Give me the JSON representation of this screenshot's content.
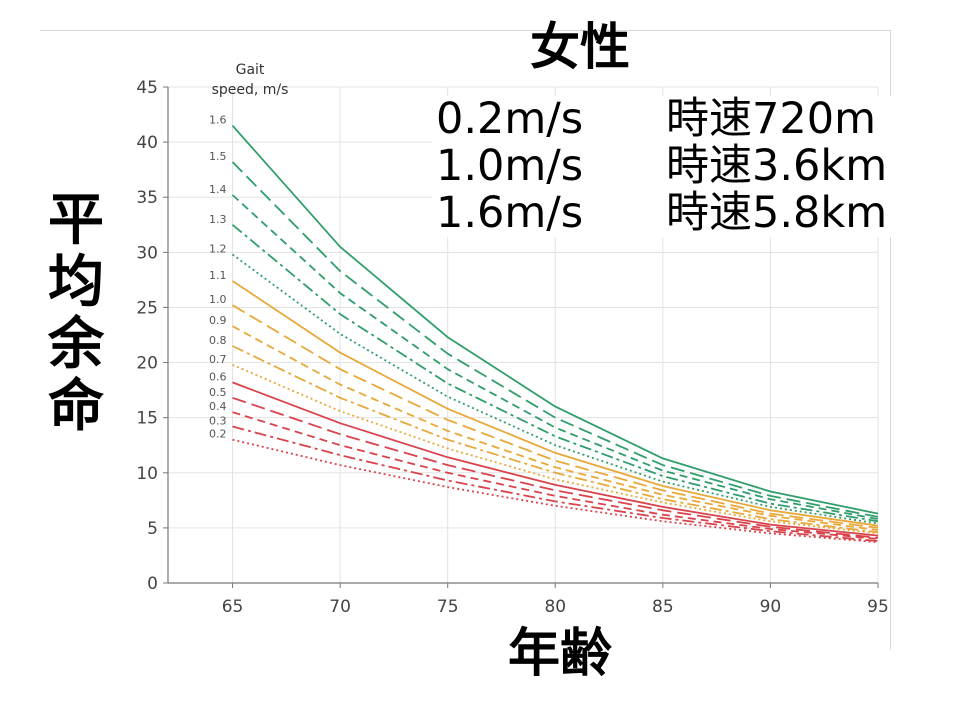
{
  "title": "女性",
  "y_axis_label": "平均余命",
  "x_axis_label": "年齢",
  "speed_info": [
    {
      "speed": "0.2m/s",
      "equiv": "時速720m"
    },
    {
      "speed": "1.0m/s",
      "equiv": "時速3.6km"
    },
    {
      "speed": "1.6m/s",
      "equiv": "時速5.8km"
    }
  ],
  "legend_header": [
    "Gait",
    "speed, m/s"
  ],
  "colors": {
    "green": "#2f9e6a",
    "orange": "#e8a83a",
    "red": "#d9434b"
  },
  "chart_data": {
    "type": "line",
    "xlim": [
      62,
      95
    ],
    "ylim": [
      0,
      45
    ],
    "x_ticks": [
      65,
      70,
      75,
      80,
      85,
      90,
      95
    ],
    "y_ticks": [
      0,
      5,
      10,
      15,
      20,
      25,
      30,
      35,
      40,
      45
    ],
    "grid": true,
    "x": [
      65,
      70,
      75,
      80,
      85,
      90,
      95
    ],
    "series": [
      {
        "name": "1.6",
        "color": "#2f9e6a",
        "dash": "solid",
        "values": [
          41.5,
          30.5,
          22.3,
          16.0,
          11.3,
          8.3,
          6.3
        ]
      },
      {
        "name": "1.5",
        "color": "#2f9e6a",
        "dash": "longdash",
        "values": [
          38.2,
          28.3,
          20.8,
          15.0,
          10.7,
          7.9,
          6.0
        ]
      },
      {
        "name": "1.4",
        "color": "#2f9e6a",
        "dash": "dash",
        "values": [
          35.2,
          26.3,
          19.4,
          14.1,
          10.2,
          7.6,
          5.8
        ]
      },
      {
        "name": "1.3",
        "color": "#2f9e6a",
        "dash": "dashdot",
        "values": [
          32.5,
          24.4,
          18.1,
          13.3,
          9.7,
          7.2,
          5.6
        ]
      },
      {
        "name": "1.2",
        "color": "#2f9e6a",
        "dash": "dot",
        "values": [
          29.8,
          22.6,
          16.9,
          12.5,
          9.2,
          6.9,
          5.4
        ]
      },
      {
        "name": "1.1",
        "color": "#e8a83a",
        "dash": "solid",
        "values": [
          27.4,
          20.9,
          15.8,
          11.8,
          8.8,
          6.6,
          5.2
        ]
      },
      {
        "name": "1.0",
        "color": "#e8a83a",
        "dash": "longdash",
        "values": [
          25.2,
          19.4,
          14.8,
          11.1,
          8.4,
          6.3,
          5.0
        ]
      },
      {
        "name": "0.9",
        "color": "#e8a83a",
        "dash": "dash",
        "values": [
          23.3,
          18.0,
          13.8,
          10.5,
          8.0,
          6.1,
          4.8
        ]
      },
      {
        "name": "0.8",
        "color": "#e8a83a",
        "dash": "dashdot",
        "values": [
          21.5,
          16.8,
          13.0,
          10.0,
          7.6,
          5.8,
          4.6
        ]
      },
      {
        "name": "0.7",
        "color": "#e8a83a",
        "dash": "dot",
        "values": [
          19.8,
          15.6,
          12.2,
          9.4,
          7.3,
          5.6,
          4.5
        ]
      },
      {
        "name": "0.6",
        "color": "#d9434b",
        "dash": "solid",
        "values": [
          18.2,
          14.5,
          11.4,
          8.9,
          6.9,
          5.3,
          4.3
        ]
      },
      {
        "name": "0.5",
        "color": "#d9434b",
        "dash": "longdash",
        "values": [
          16.8,
          13.5,
          10.7,
          8.4,
          6.6,
          5.1,
          4.1
        ]
      },
      {
        "name": "0.4",
        "color": "#d9434b",
        "dash": "dash",
        "values": [
          15.5,
          12.5,
          10.0,
          7.9,
          6.2,
          4.9,
          4.0
        ]
      },
      {
        "name": "0.3",
        "color": "#d9434b",
        "dash": "dashdot",
        "values": [
          14.2,
          11.6,
          9.3,
          7.4,
          5.9,
          4.7,
          3.8
        ]
      },
      {
        "name": "0.2",
        "color": "#d9434b",
        "dash": "dot",
        "values": [
          13.0,
          10.7,
          8.7,
          7.0,
          5.6,
          4.5,
          3.7
        ]
      }
    ]
  }
}
